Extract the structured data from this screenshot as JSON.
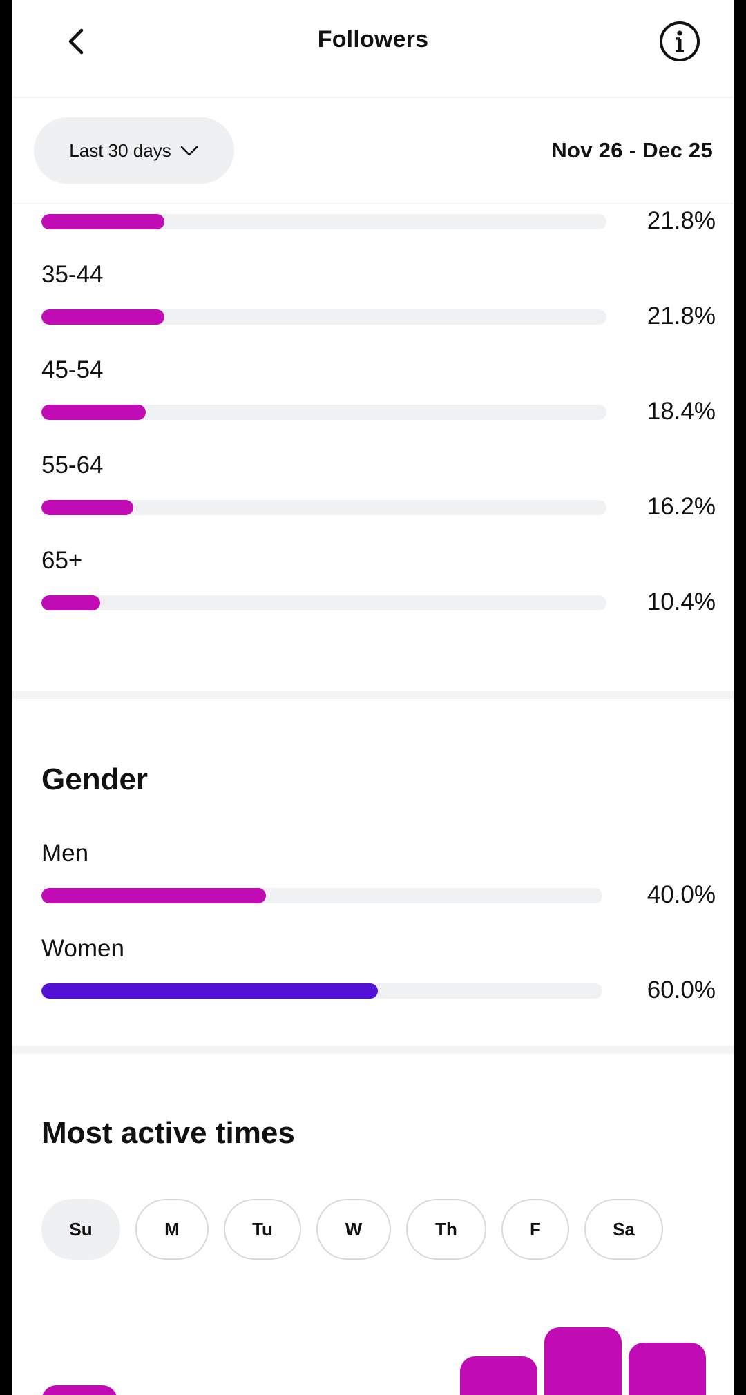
{
  "header": {
    "title": "Followers"
  },
  "filter": {
    "range_label": "Last 30 days",
    "date_range": "Nov 26 - Dec 25"
  },
  "age": {
    "rows": [
      {
        "label": "",
        "value_text": "21.8%",
        "percent": 21.8
      },
      {
        "label": "35-44",
        "value_text": "21.8%",
        "percent": 21.8
      },
      {
        "label": "45-54",
        "value_text": "18.4%",
        "percent": 18.4
      },
      {
        "label": "55-64",
        "value_text": "16.2%",
        "percent": 16.2
      },
      {
        "label": "65+",
        "value_text": "10.4%",
        "percent": 10.4
      }
    ]
  },
  "gender": {
    "title": "Gender",
    "rows": [
      {
        "label": "Men",
        "value_text": "40.0%",
        "percent": 40.0,
        "color": "#c10bb4"
      },
      {
        "label": "Women",
        "value_text": "60.0%",
        "percent": 60.0,
        "color": "#5411d6"
      }
    ]
  },
  "active_times": {
    "title": "Most active times",
    "days": [
      "Su",
      "M",
      "Tu",
      "W",
      "Th",
      "F",
      "Sa"
    ],
    "selected_day": "Su",
    "bar_color": "#c10bb4"
  },
  "colors": {
    "accent": "#c10bb4",
    "women": "#5411d6",
    "track": "#f0f1f3"
  }
}
